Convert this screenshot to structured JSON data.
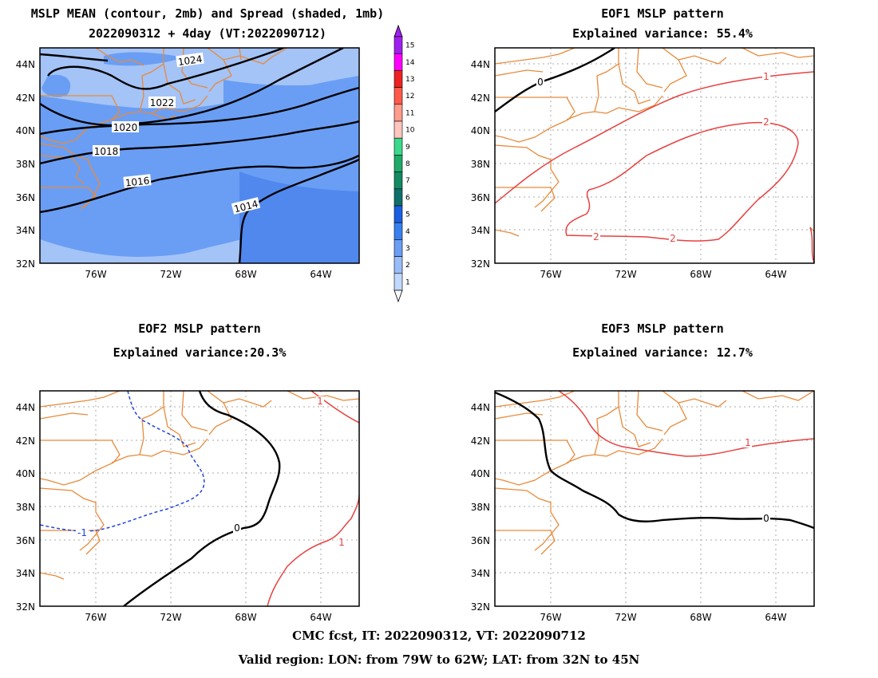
{
  "panels": [
    {
      "id": "mean",
      "title_lines": [
        "MSLP MEAN (contour, 2mb) and Spread (shaded, 1mb)",
        "2022090312 + 4day (VT:2022090712)"
      ]
    },
    {
      "id": "eof1",
      "title_lines": [
        "EOF1 MSLP pattern",
        "Explained variance: 55.4%"
      ]
    },
    {
      "id": "eof2",
      "title_lines": [
        "EOF2 MSLP pattern",
        "Explained variance:20.3%"
      ]
    },
    {
      "id": "eof3",
      "title_lines": [
        "EOF3 MSLP pattern",
        "Explained variance: 12.7%"
      ]
    }
  ],
  "axes": {
    "lat_labels": [
      "44N",
      "42N",
      "40N",
      "38N",
      "36N",
      "34N",
      "32N"
    ],
    "lon_labels": [
      "76W",
      "72W",
      "68W",
      "64W"
    ],
    "lat_values": [
      44,
      42,
      40,
      38,
      36,
      34,
      32
    ],
    "lon_values": [
      -76,
      -72,
      -68,
      -64
    ],
    "lon_range": [
      -79,
      -62
    ],
    "lat_range": [
      32,
      45
    ]
  },
  "mean_contour_labels": [
    "1024",
    "1022",
    "1020",
    "1018",
    "1016",
    "1014"
  ],
  "eof1_contour_labels": [
    "0",
    "1",
    "2",
    "2",
    "2"
  ],
  "eof2_contour_labels": [
    "-1",
    "0",
    "1",
    "1"
  ],
  "eof3_contour_labels": [
    "1",
    "0"
  ],
  "colorbar": {
    "labels": [
      "15",
      "14",
      "13",
      "12",
      "11",
      "10",
      "9",
      "8",
      "7",
      "6",
      "5",
      "4",
      "3",
      "2",
      "1"
    ],
    "colors": [
      "#a020f0",
      "#ff00ff",
      "#ee2222",
      "#ff5a4a",
      "#ff9c8c",
      "#ffc6c0",
      "#3cd98c",
      "#1faa6a",
      "#138a62",
      "#0f6f6a",
      "#1a5fe0",
      "#3a7ff0",
      "#6a9ef4",
      "#98bdf8",
      "#c2d8fc"
    ]
  },
  "colors": {
    "coast": "#e88a3a",
    "positive": "#e84040",
    "negative": "#2244dd",
    "zero": "#000000",
    "spread_1": "#a4c3f7",
    "spread_2": "#6a9ef4",
    "spread_3": "#5088ee"
  },
  "footer": {
    "line1": "CMC fcst, IT: 2022090312, VT: 2022090712",
    "line2": "Valid region: LON: from 79W to 62W; LAT: from 32N to 45N"
  }
}
